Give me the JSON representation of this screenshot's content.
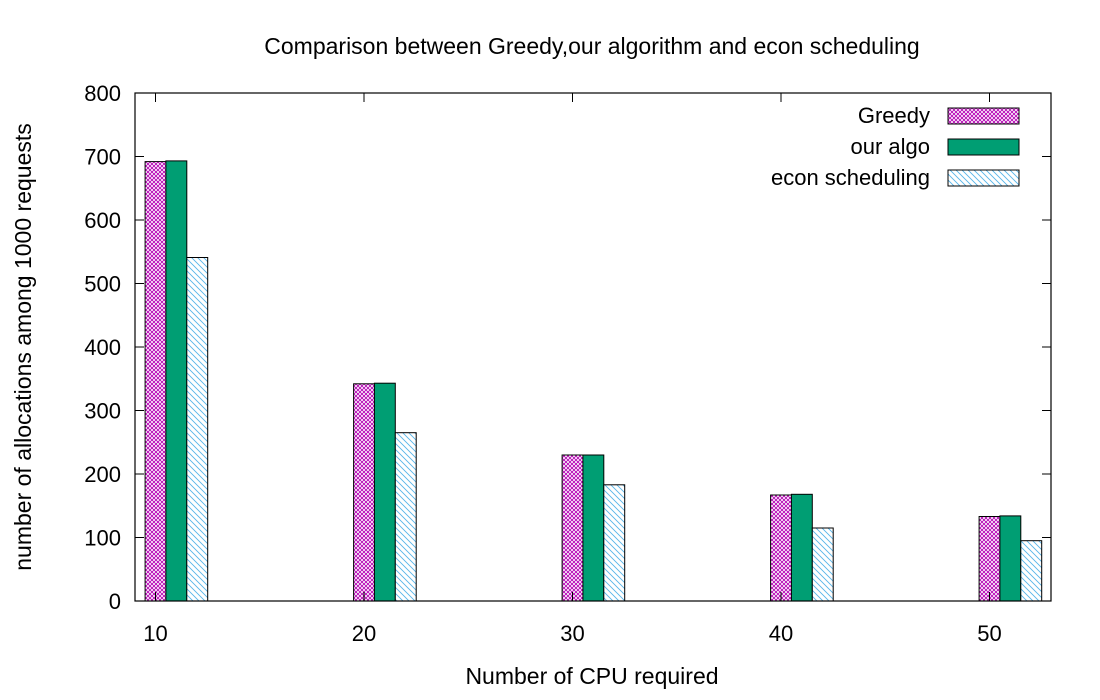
{
  "chart_data": {
    "type": "bar",
    "title": "Comparison between Greedy,our algorithm and econ scheduling",
    "xlabel": "Number of CPU required",
    "ylabel": "number of allocations among 1000 requests",
    "categories": [
      "10",
      "20",
      "30",
      "40",
      "50"
    ],
    "ylim": [
      0,
      800
    ],
    "yticks": [
      "0",
      "100",
      "200",
      "300",
      "400",
      "500",
      "600",
      "700",
      "800"
    ],
    "grid": false,
    "legend_position": "top-right",
    "series": [
      {
        "name": "Greedy",
        "values": [
          692,
          342,
          230,
          167,
          133
        ],
        "color": "#b400b4",
        "pattern": "crosshatch"
      },
      {
        "name": "our algo",
        "values": [
          693,
          343,
          230,
          168,
          134
        ],
        "color": "#009e73",
        "pattern": "solid"
      },
      {
        "name": "econ scheduling",
        "values": [
          541,
          265,
          183,
          115,
          95
        ],
        "color": "#56b4e9",
        "pattern": "diagonal"
      }
    ]
  }
}
